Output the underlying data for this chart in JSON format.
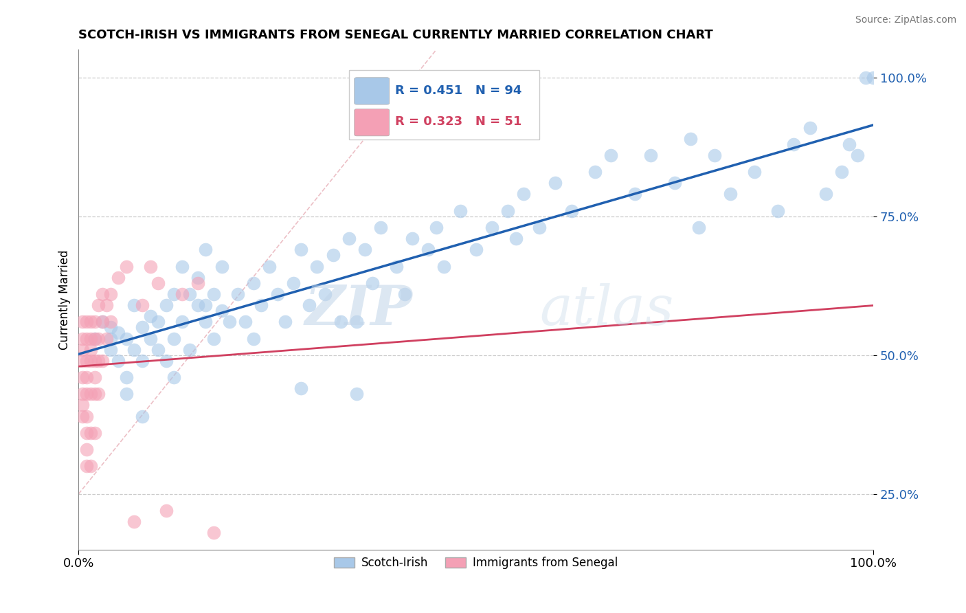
{
  "title": "SCOTCH-IRISH VS IMMIGRANTS FROM SENEGAL CURRENTLY MARRIED CORRELATION CHART",
  "source_text": "Source: ZipAtlas.com",
  "ylabel": "Currently Married",
  "watermark": "ZIPatlas",
  "xlim": [
    0.0,
    1.0
  ],
  "ylim": [
    0.15,
    1.05
  ],
  "xtick_positions": [
    0.0,
    1.0
  ],
  "xtick_labels": [
    "0.0%",
    "100.0%"
  ],
  "ytick_positions": [
    0.25,
    0.5,
    0.75,
    1.0
  ],
  "ytick_labels": [
    "25.0%",
    "50.0%",
    "75.0%",
    "100.0%"
  ],
  "blue_R": 0.451,
  "blue_N": 94,
  "pink_R": 0.323,
  "pink_N": 51,
  "blue_color": "#a8c8e8",
  "pink_color": "#f4a0b5",
  "blue_line_color": "#2060b0",
  "pink_line_color": "#d04060",
  "ref_line_color": "#e8b0b8",
  "grid_color": "#cccccc",
  "legend_label_blue": "Scotch-Irish",
  "legend_label_pink": "Immigrants from Senegal",
  "blue_scatter_x": [
    0.02,
    0.03,
    0.04,
    0.04,
    0.05,
    0.05,
    0.06,
    0.06,
    0.07,
    0.07,
    0.08,
    0.08,
    0.09,
    0.09,
    0.1,
    0.1,
    0.11,
    0.11,
    0.12,
    0.12,
    0.13,
    0.13,
    0.14,
    0.14,
    0.15,
    0.15,
    0.16,
    0.16,
    0.17,
    0.17,
    0.18,
    0.18,
    0.19,
    0.2,
    0.21,
    0.22,
    0.23,
    0.24,
    0.25,
    0.26,
    0.27,
    0.28,
    0.29,
    0.3,
    0.31,
    0.32,
    0.33,
    0.34,
    0.35,
    0.36,
    0.37,
    0.38,
    0.4,
    0.41,
    0.42,
    0.44,
    0.45,
    0.46,
    0.48,
    0.5,
    0.52,
    0.54,
    0.55,
    0.56,
    0.58,
    0.6,
    0.62,
    0.65,
    0.67,
    0.7,
    0.72,
    0.75,
    0.77,
    0.78,
    0.8,
    0.82,
    0.85,
    0.88,
    0.9,
    0.92,
    0.94,
    0.96,
    0.97,
    0.98,
    0.99,
    1.0,
    0.04,
    0.06,
    0.08,
    0.12,
    0.16,
    0.22,
    0.28,
    0.35
  ],
  "blue_scatter_y": [
    0.53,
    0.56,
    0.51,
    0.55,
    0.49,
    0.54,
    0.46,
    0.53,
    0.51,
    0.59,
    0.49,
    0.55,
    0.53,
    0.57,
    0.51,
    0.56,
    0.49,
    0.59,
    0.53,
    0.61,
    0.56,
    0.66,
    0.51,
    0.61,
    0.59,
    0.64,
    0.56,
    0.69,
    0.53,
    0.61,
    0.58,
    0.66,
    0.56,
    0.61,
    0.56,
    0.63,
    0.59,
    0.66,
    0.61,
    0.56,
    0.63,
    0.69,
    0.59,
    0.66,
    0.61,
    0.68,
    0.56,
    0.71,
    0.56,
    0.69,
    0.63,
    0.73,
    0.66,
    0.61,
    0.71,
    0.69,
    0.73,
    0.66,
    0.76,
    0.69,
    0.73,
    0.76,
    0.71,
    0.79,
    0.73,
    0.81,
    0.76,
    0.83,
    0.86,
    0.79,
    0.86,
    0.81,
    0.89,
    0.73,
    0.86,
    0.79,
    0.83,
    0.76,
    0.88,
    0.91,
    0.79,
    0.83,
    0.88,
    0.86,
    1.0,
    1.0,
    0.53,
    0.43,
    0.39,
    0.46,
    0.59,
    0.53,
    0.44,
    0.43
  ],
  "pink_scatter_x": [
    0.005,
    0.005,
    0.005,
    0.005,
    0.005,
    0.005,
    0.005,
    0.005,
    0.01,
    0.01,
    0.01,
    0.01,
    0.01,
    0.01,
    0.01,
    0.01,
    0.01,
    0.015,
    0.015,
    0.015,
    0.015,
    0.015,
    0.015,
    0.015,
    0.02,
    0.02,
    0.02,
    0.02,
    0.02,
    0.02,
    0.025,
    0.025,
    0.025,
    0.025,
    0.03,
    0.03,
    0.03,
    0.035,
    0.035,
    0.04,
    0.04,
    0.05,
    0.06,
    0.07,
    0.08,
    0.09,
    0.1,
    0.11,
    0.13,
    0.15,
    0.17
  ],
  "pink_scatter_y": [
    0.56,
    0.53,
    0.51,
    0.49,
    0.46,
    0.43,
    0.41,
    0.39,
    0.56,
    0.53,
    0.49,
    0.46,
    0.43,
    0.39,
    0.36,
    0.33,
    0.3,
    0.56,
    0.53,
    0.51,
    0.49,
    0.43,
    0.36,
    0.3,
    0.56,
    0.53,
    0.49,
    0.46,
    0.43,
    0.36,
    0.59,
    0.53,
    0.49,
    0.43,
    0.61,
    0.56,
    0.49,
    0.59,
    0.53,
    0.61,
    0.56,
    0.64,
    0.66,
    0.2,
    0.59,
    0.66,
    0.63,
    0.22,
    0.61,
    0.63,
    0.18
  ]
}
